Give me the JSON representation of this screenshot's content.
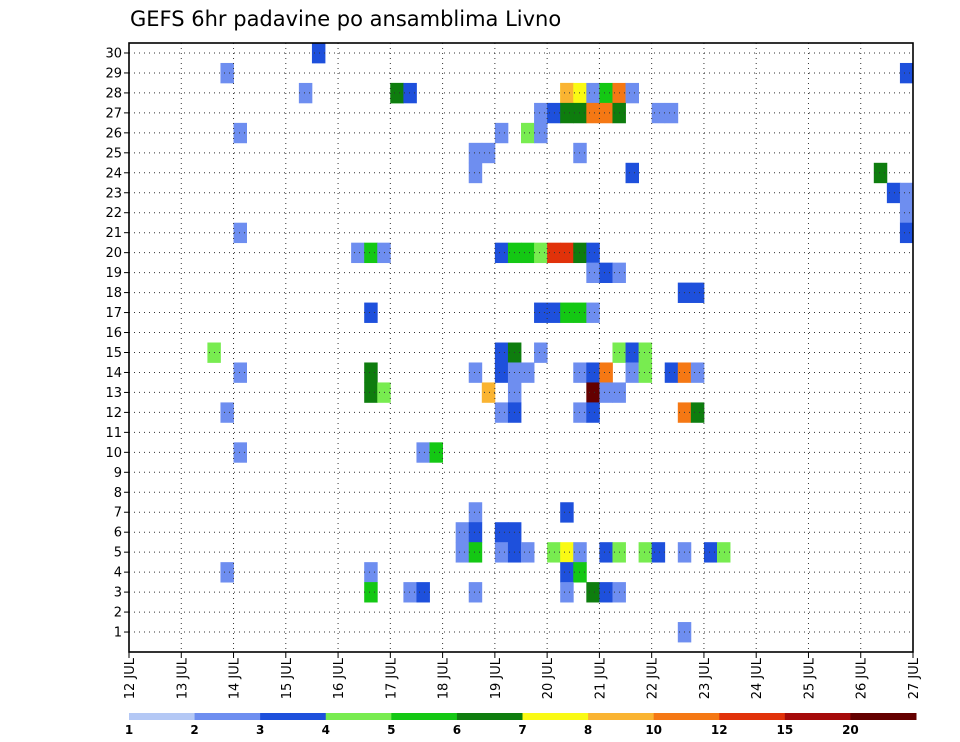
{
  "chart_data": {
    "type": "heatmap",
    "title": "GEFS 6hr padavine po ansamblima Livno",
    "xlabel": "",
    "ylabel": "",
    "x_ticks": [
      "12 JUL",
      "13 JUL",
      "14 JUL",
      "15 JUL",
      "16 JUL",
      "17 JUL",
      "18 JUL",
      "19 JUL",
      "20 JUL",
      "21 JUL",
      "22 JUL",
      "23 JUL",
      "24 JUL",
      "25 JUL",
      "26 JUL",
      "27 JUL"
    ],
    "y_ticks": [
      "1",
      "2",
      "3",
      "4",
      "5",
      "6",
      "7",
      "8",
      "9",
      "10",
      "11",
      "12",
      "13",
      "14",
      "15",
      "16",
      "17",
      "18",
      "19",
      "20",
      "21",
      "22",
      "23",
      "24",
      "25",
      "26",
      "27",
      "28",
      "29",
      "30"
    ],
    "x_range": [
      0,
      60
    ],
    "y_range": [
      0,
      30
    ],
    "grid": true,
    "colorbar": {
      "position": "bottom",
      "ticks": [
        "1",
        "2",
        "3",
        "4",
        "5",
        "6",
        "7",
        "8",
        "10",
        "12",
        "15",
        "20"
      ],
      "colors": [
        "#b4c8f5",
        "#6e8ef0",
        "#1e50dc",
        "#78ec50",
        "#14c814",
        "#0e7d0e",
        "#fafa14",
        "#fab432",
        "#f57814",
        "#e1320a",
        "#a50a0a",
        "#640000"
      ]
    },
    "cells": [
      [
        7,
        29,
        1
      ],
      [
        14,
        30,
        2
      ],
      [
        59,
        29,
        2
      ],
      [
        13,
        28,
        1
      ],
      [
        20,
        28,
        4
      ],
      [
        20,
        28,
        5
      ],
      [
        21,
        28,
        2
      ],
      [
        33,
        28,
        6
      ],
      [
        33,
        28,
        7
      ],
      [
        34,
        28,
        6
      ],
      [
        35,
        28,
        1
      ],
      [
        36,
        28,
        4
      ],
      [
        37,
        28,
        8
      ],
      [
        38,
        28,
        1
      ],
      [
        31,
        27,
        1
      ],
      [
        32,
        27,
        2
      ],
      [
        33,
        27,
        5
      ],
      [
        34,
        27,
        5
      ],
      [
        35,
        27,
        8
      ],
      [
        36,
        27,
        8
      ],
      [
        37,
        27,
        5
      ],
      [
        40,
        27,
        1
      ],
      [
        41,
        27,
        1
      ],
      [
        8,
        26,
        1
      ],
      [
        28,
        26,
        1
      ],
      [
        30,
        26,
        3
      ],
      [
        31,
        26,
        1
      ],
      [
        26,
        25,
        1
      ],
      [
        27,
        25,
        1
      ],
      [
        34,
        25,
        1
      ],
      [
        26,
        24,
        1
      ],
      [
        38,
        24,
        2
      ],
      [
        57,
        24,
        5
      ],
      [
        58,
        23,
        2
      ],
      [
        59,
        23,
        1
      ],
      [
        59,
        22,
        1
      ],
      [
        8,
        21,
        1
      ],
      [
        59,
        21,
        2
      ],
      [
        17,
        20,
        1
      ],
      [
        18,
        20,
        4
      ],
      [
        19,
        20,
        1
      ],
      [
        28,
        20,
        2
      ],
      [
        29,
        20,
        4
      ],
      [
        30,
        20,
        4
      ],
      [
        31,
        20,
        3
      ],
      [
        32,
        20,
        9
      ],
      [
        33,
        20,
        9
      ],
      [
        34,
        20,
        5
      ],
      [
        35,
        20,
        2
      ],
      [
        35,
        19,
        1
      ],
      [
        36,
        19,
        2
      ],
      [
        37,
        19,
        1
      ],
      [
        42,
        18,
        2
      ],
      [
        43,
        18,
        2
      ],
      [
        18,
        17,
        2
      ],
      [
        31,
        17,
        2
      ],
      [
        32,
        17,
        2
      ],
      [
        33,
        17,
        4
      ],
      [
        34,
        17,
        4
      ],
      [
        35,
        17,
        1
      ],
      [
        6,
        15,
        3
      ],
      [
        28,
        15,
        2
      ],
      [
        29,
        15,
        5
      ],
      [
        31,
        15,
        1
      ],
      [
        37,
        15,
        3
      ],
      [
        38,
        15,
        2
      ],
      [
        39,
        15,
        3
      ],
      [
        8,
        14,
        1
      ],
      [
        18,
        14,
        5
      ],
      [
        26,
        14,
        1
      ],
      [
        28,
        14,
        2
      ],
      [
        29,
        14,
        1
      ],
      [
        30,
        14,
        1
      ],
      [
        34,
        14,
        1
      ],
      [
        35,
        14,
        2
      ],
      [
        36,
        14,
        8
      ],
      [
        38,
        14,
        1
      ],
      [
        39,
        14,
        3
      ],
      [
        41,
        14,
        2
      ],
      [
        42,
        14,
        8
      ],
      [
        43,
        14,
        1
      ],
      [
        18,
        13,
        5
      ],
      [
        19,
        13,
        3
      ],
      [
        27,
        13,
        7
      ],
      [
        29,
        13,
        1
      ],
      [
        35,
        13,
        11
      ],
      [
        36,
        13,
        1
      ],
      [
        37,
        13,
        1
      ],
      [
        7,
        12,
        1
      ],
      [
        28,
        12,
        1
      ],
      [
        29,
        12,
        2
      ],
      [
        34,
        12,
        1
      ],
      [
        35,
        12,
        2
      ],
      [
        42,
        12,
        8
      ],
      [
        43,
        12,
        5
      ],
      [
        8,
        10,
        1
      ],
      [
        22,
        10,
        1
      ],
      [
        23,
        10,
        4
      ],
      [
        26,
        7,
        1
      ],
      [
        33,
        7,
        2
      ],
      [
        25,
        6,
        1
      ],
      [
        26,
        6,
        2
      ],
      [
        28,
        6,
        2
      ],
      [
        29,
        6,
        2
      ],
      [
        25,
        5,
        1
      ],
      [
        26,
        5,
        4
      ],
      [
        28,
        5,
        1
      ],
      [
        29,
        5,
        2
      ],
      [
        30,
        5,
        1
      ],
      [
        32,
        5,
        3
      ],
      [
        33,
        5,
        6
      ],
      [
        34,
        5,
        1
      ],
      [
        36,
        5,
        2
      ],
      [
        37,
        5,
        3
      ],
      [
        39,
        5,
        3
      ],
      [
        40,
        5,
        2
      ],
      [
        42,
        5,
        1
      ],
      [
        44,
        5,
        2
      ],
      [
        45,
        5,
        3
      ],
      [
        7,
        4,
        1
      ],
      [
        18,
        4,
        1
      ],
      [
        33,
        4,
        2
      ],
      [
        34,
        4,
        4
      ],
      [
        18,
        3,
        4
      ],
      [
        21,
        3,
        1
      ],
      [
        22,
        3,
        2
      ],
      [
        26,
        3,
        1
      ],
      [
        33,
        3,
        1
      ],
      [
        35,
        3,
        5
      ],
      [
        36,
        3,
        2
      ],
      [
        37,
        3,
        1
      ],
      [
        42,
        1,
        1
      ]
    ]
  }
}
